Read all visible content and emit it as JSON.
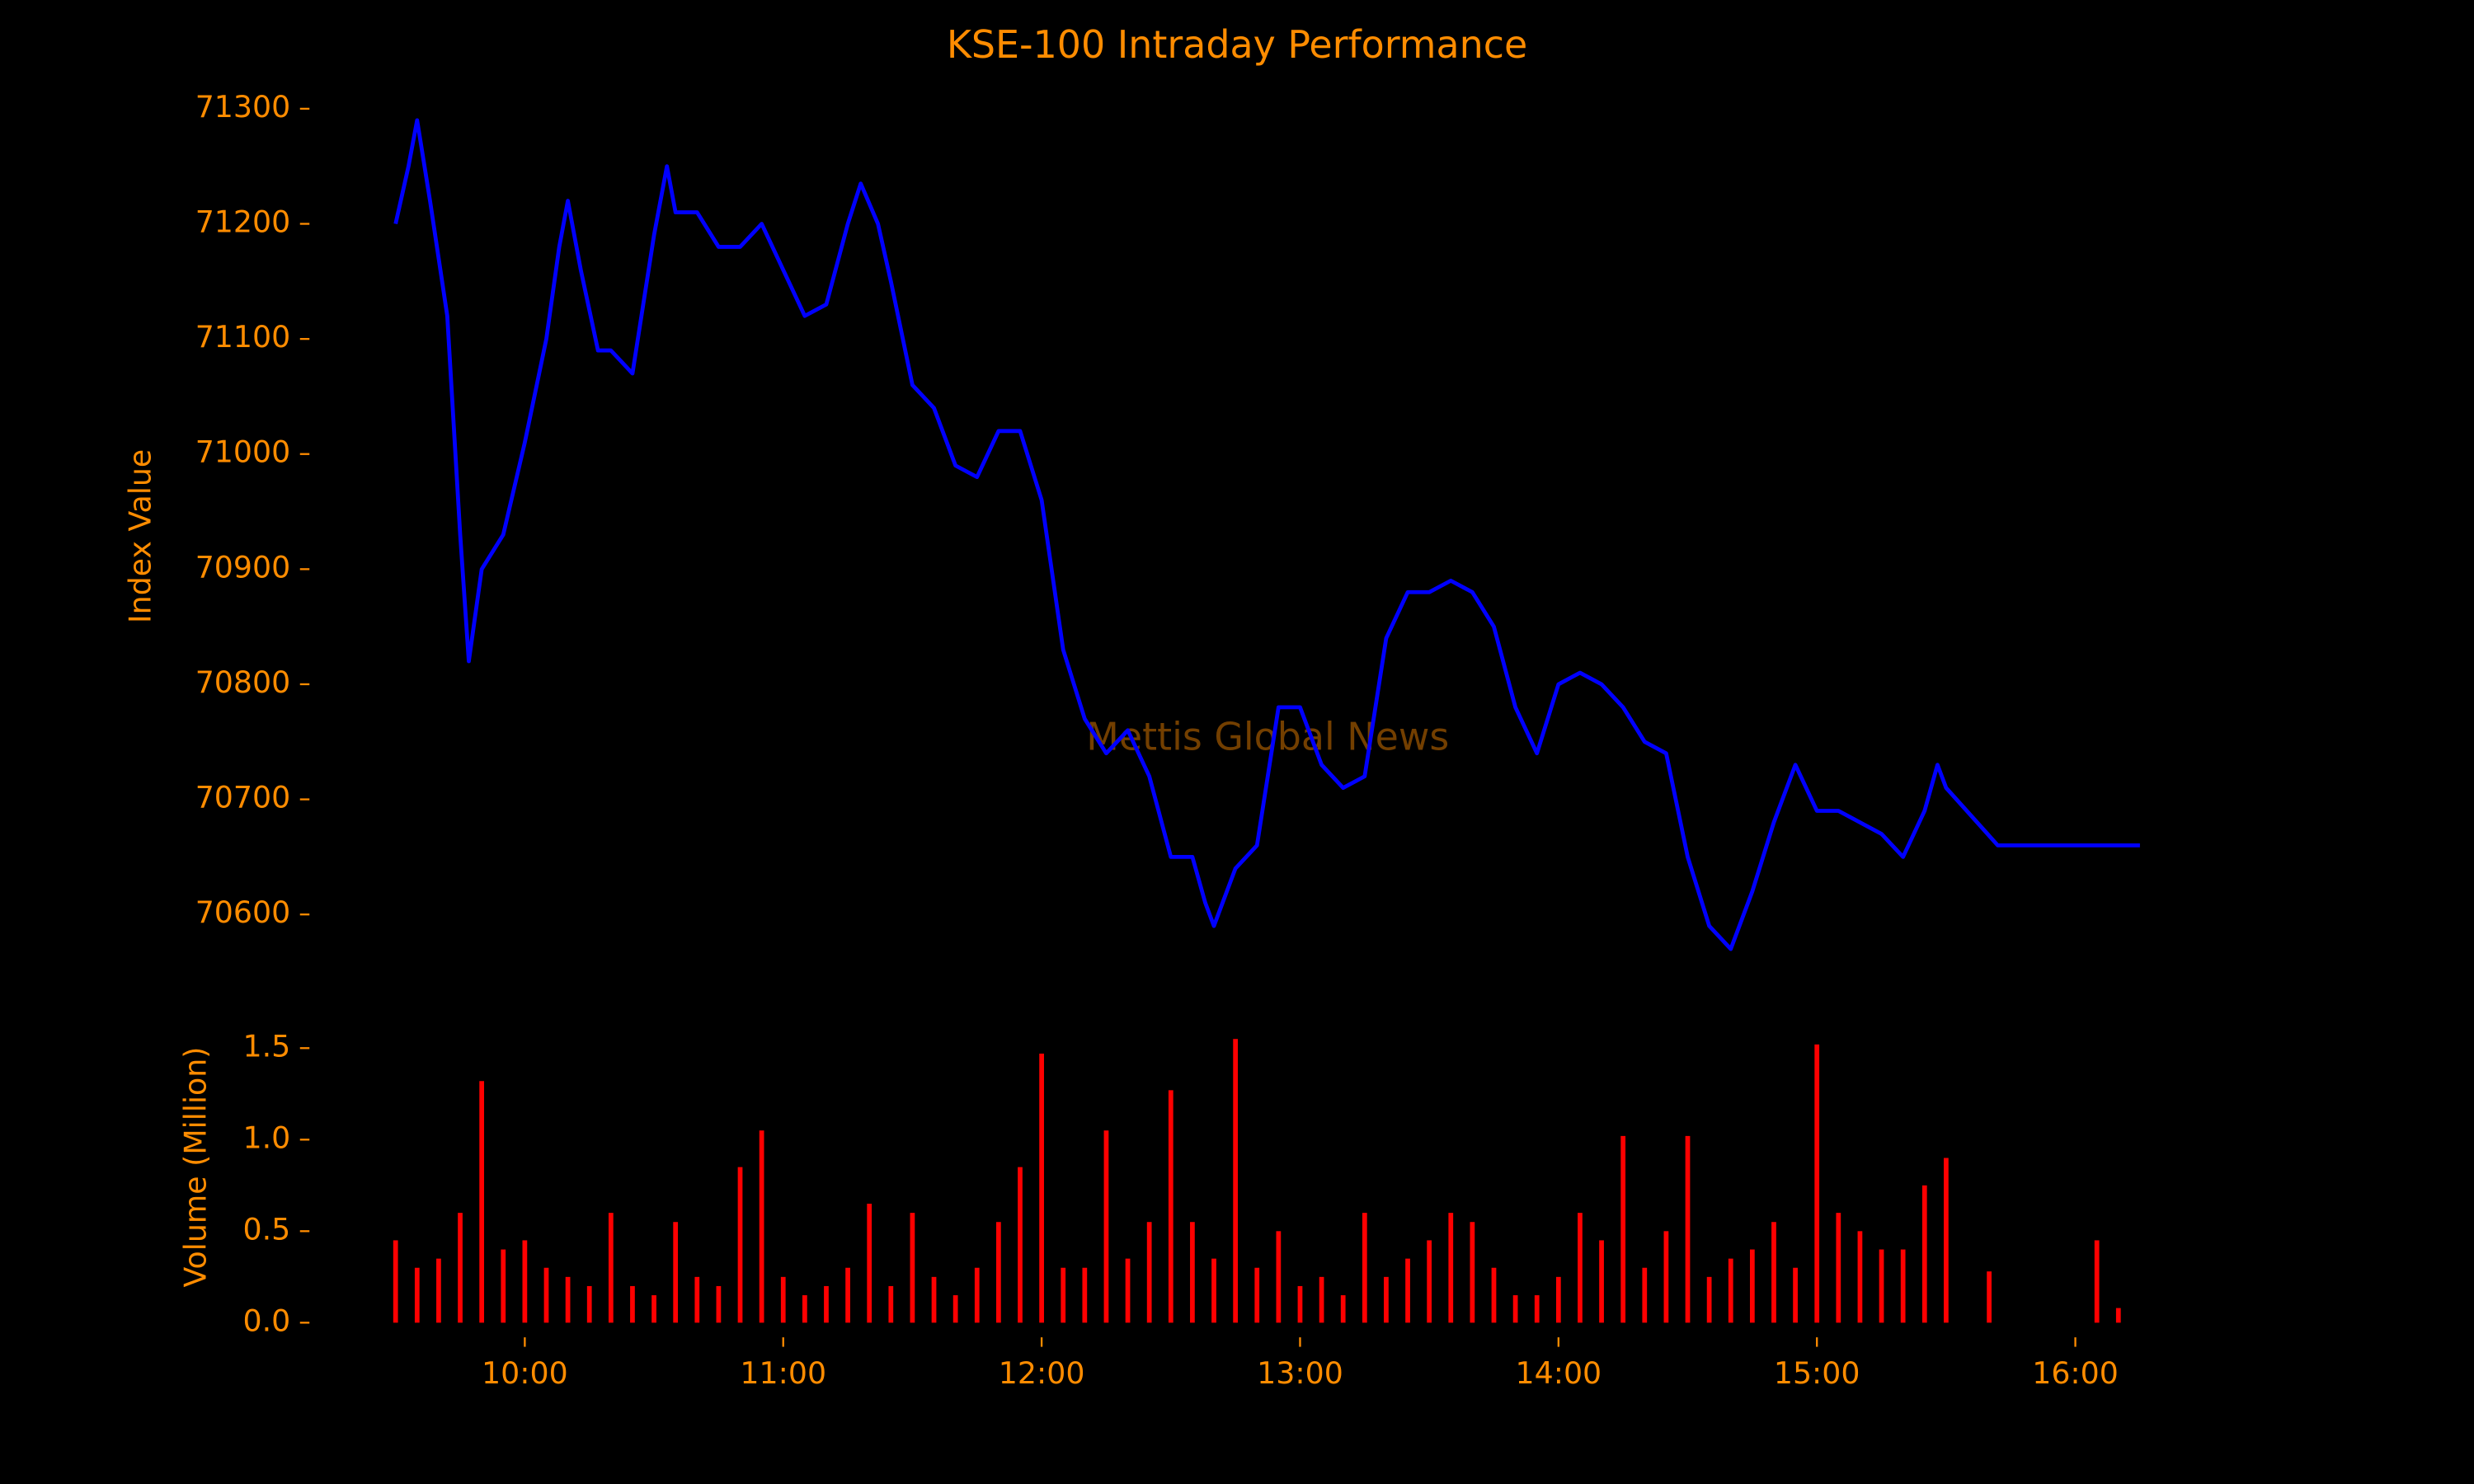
{
  "chart_data": [
    {
      "type": "line",
      "title": "KSE-100 Intraday Performance",
      "ylabel": "Index Value",
      "annotation": "Mettis Global News",
      "xlim": [
        "09:10",
        "16:35"
      ],
      "ylim": [
        70545,
        71315
      ],
      "yticks": [
        70600,
        70700,
        70800,
        70900,
        71000,
        71100,
        71200,
        71300
      ],
      "x": [
        "09:30",
        "09:33",
        "09:35",
        "09:38",
        "09:42",
        "09:45",
        "09:47",
        "09:50",
        "09:55",
        "10:00",
        "10:05",
        "10:08",
        "10:10",
        "10:13",
        "10:17",
        "10:20",
        "10:25",
        "10:30",
        "10:33",
        "10:35",
        "10:40",
        "10:45",
        "10:50",
        "10:55",
        "11:00",
        "11:05",
        "11:10",
        "11:15",
        "11:18",
        "11:22",
        "11:25",
        "11:30",
        "11:35",
        "11:40",
        "11:45",
        "11:50",
        "11:55",
        "12:00",
        "12:05",
        "12:10",
        "12:15",
        "12:20",
        "12:25",
        "12:30",
        "12:35",
        "12:38",
        "12:40",
        "12:45",
        "12:50",
        "12:55",
        "13:00",
        "13:05",
        "13:10",
        "13:15",
        "13:20",
        "13:25",
        "13:30",
        "13:35",
        "13:40",
        "13:45",
        "13:50",
        "13:55",
        "14:00",
        "14:05",
        "14:10",
        "14:15",
        "14:20",
        "14:25",
        "14:30",
        "14:35",
        "14:40",
        "14:45",
        "14:50",
        "14:55",
        "15:00",
        "15:05",
        "15:10",
        "15:15",
        "15:20",
        "15:25",
        "15:28",
        "15:30",
        "15:42",
        "16:15"
      ],
      "series": [
        {
          "name": "KSE-100",
          "color": "#0000ff",
          "values": [
            71200,
            71250,
            71290,
            71220,
            71120,
            70930,
            70820,
            70900,
            70930,
            71010,
            71100,
            71180,
            71220,
            71160,
            71090,
            71090,
            71070,
            71190,
            71250,
            71210,
            71210,
            71180,
            71180,
            71200,
            71160,
            71120,
            71130,
            71200,
            71235,
            71200,
            71150,
            71060,
            71040,
            70990,
            70980,
            71020,
            71020,
            70960,
            70830,
            70770,
            70740,
            70760,
            70720,
            70650,
            70650,
            70610,
            70590,
            70640,
            70660,
            70780,
            70780,
            70730,
            70710,
            70720,
            70840,
            70880,
            70880,
            70890,
            70880,
            70850,
            70780,
            70740,
            70800,
            70810,
            70800,
            70780,
            70750,
            70740,
            70650,
            70590,
            70570,
            70620,
            70680,
            70730,
            70690,
            70690,
            70680,
            70670,
            70650,
            70690,
            70730,
            70710,
            70660,
            70660
          ]
        }
      ]
    },
    {
      "type": "bar",
      "ylabel": "Volume (Million)",
      "xlim": [
        "09:10",
        "16:35"
      ],
      "ylim": [
        -0.08,
        1.6
      ],
      "xticks": [
        "10:00",
        "11:00",
        "12:00",
        "13:00",
        "14:00",
        "15:00",
        "16:00"
      ],
      "yticks": [
        {
          "value": 0,
          "label": "0.0"
        },
        0.5,
        {
          "value": 1,
          "label": "1.0"
        },
        1.5
      ],
      "x": [
        "09:30",
        "09:35",
        "09:40",
        "09:45",
        "09:50",
        "09:55",
        "10:00",
        "10:05",
        "10:10",
        "10:15",
        "10:20",
        "10:25",
        "10:30",
        "10:35",
        "10:40",
        "10:45",
        "10:50",
        "10:55",
        "11:00",
        "11:05",
        "11:10",
        "11:15",
        "11:20",
        "11:25",
        "11:30",
        "11:35",
        "11:40",
        "11:45",
        "11:50",
        "11:55",
        "12:00",
        "12:05",
        "12:10",
        "12:15",
        "12:20",
        "12:25",
        "12:30",
        "12:35",
        "12:40",
        "12:45",
        "12:50",
        "12:55",
        "13:00",
        "13:05",
        "13:10",
        "13:15",
        "13:20",
        "13:25",
        "13:30",
        "13:35",
        "13:40",
        "13:45",
        "13:50",
        "13:55",
        "14:00",
        "14:05",
        "14:10",
        "14:15",
        "14:20",
        "14:25",
        "14:30",
        "14:35",
        "14:40",
        "14:45",
        "14:50",
        "14:55",
        "15:00",
        "15:05",
        "15:10",
        "15:15",
        "15:20",
        "15:25",
        "15:30",
        "15:40",
        "16:05",
        "16:10"
      ],
      "series": [
        {
          "name": "Volume",
          "color": "#ff0000",
          "values": [
            0.45,
            0.3,
            0.35,
            0.6,
            1.32,
            0.4,
            0.45,
            0.3,
            0.25,
            0.2,
            0.6,
            0.2,
            0.15,
            0.55,
            0.25,
            0.2,
            0.85,
            1.05,
            0.25,
            0.15,
            0.2,
            0.3,
            0.65,
            0.2,
            0.6,
            0.25,
            0.15,
            0.3,
            0.55,
            0.85,
            1.47,
            0.3,
            0.3,
            1.05,
            0.35,
            0.55,
            1.27,
            0.55,
            0.35,
            1.55,
            0.3,
            0.5,
            0.2,
            0.25,
            0.15,
            0.6,
            0.25,
            0.35,
            0.45,
            0.6,
            0.55,
            0.3,
            0.15,
            0.15,
            0.25,
            0.6,
            0.45,
            1.02,
            0.3,
            0.5,
            1.02,
            0.25,
            0.35,
            0.4,
            0.55,
            0.3,
            1.52,
            0.6,
            0.5,
            0.4,
            0.4,
            0.75,
            0.9,
            0.28,
            0.45,
            0.08
          ]
        }
      ]
    }
  ]
}
